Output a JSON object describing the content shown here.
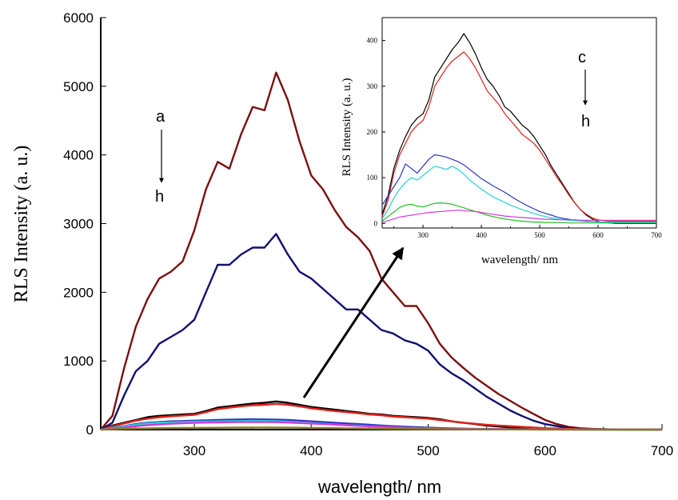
{
  "chart_data": [
    {
      "type": "line",
      "title": "",
      "xlabel": "wavelength/ nm",
      "ylabel": "RLS Intensity (a. u.)",
      "xlim": [
        220,
        700
      ],
      "ylim": [
        0,
        6000
      ],
      "xticks": [
        300,
        400,
        500,
        600,
        700
      ],
      "yticks": [
        0,
        1000,
        2000,
        3000,
        4000,
        5000,
        6000
      ],
      "grid": false,
      "annotations": [
        "a",
        "h"
      ],
      "x": [
        220,
        230,
        240,
        250,
        260,
        270,
        280,
        290,
        300,
        310,
        320,
        330,
        340,
        350,
        360,
        370,
        380,
        390,
        400,
        410,
        420,
        430,
        440,
        450,
        460,
        470,
        480,
        490,
        500,
        510,
        520,
        530,
        540,
        550,
        560,
        570,
        580,
        590,
        600,
        610,
        620,
        630,
        640,
        650,
        660,
        670,
        680,
        690,
        700
      ],
      "series": [
        {
          "color": "#7b1010",
          "values": [
            0,
            200,
            900,
            1500,
            1900,
            2200,
            2300,
            2450,
            2900,
            3500,
            3900,
            3800,
            4300,
            4700,
            4650,
            5200,
            4800,
            4200,
            3700,
            3500,
            3200,
            2950,
            2800,
            2600,
            2200,
            2000,
            1800,
            1800,
            1550,
            1250,
            1050,
            900,
            760,
            640,
            520,
            420,
            320,
            230,
            140,
            80,
            40,
            20,
            10,
            5,
            3,
            2,
            1,
            1,
            0
          ]
        },
        {
          "color": "#111170",
          "values": [
            0,
            100,
            500,
            850,
            1000,
            1250,
            1350,
            1450,
            1600,
            2000,
            2400,
            2400,
            2550,
            2650,
            2650,
            2850,
            2550,
            2300,
            2200,
            2050,
            1900,
            1750,
            1750,
            1600,
            1450,
            1400,
            1300,
            1250,
            1150,
            950,
            820,
            720,
            600,
            480,
            380,
            280,
            200,
            130,
            80,
            50,
            25,
            15,
            8,
            5,
            3,
            2,
            1,
            1,
            0
          ]
        },
        {
          "color": "#000000",
          "values": [
            0,
            60,
            100,
            140,
            180,
            200,
            210,
            220,
            230,
            270,
            320,
            340,
            360,
            380,
            390,
            410,
            390,
            360,
            330,
            310,
            290,
            270,
            250,
            230,
            220,
            200,
            190,
            180,
            170,
            150,
            120,
            100,
            80,
            60,
            45,
            30,
            20,
            12,
            8,
            5,
            3,
            2,
            1,
            1,
            0,
            0,
            0,
            0,
            0
          ]
        },
        {
          "color": "#e0201a",
          "values": [
            0,
            50,
            90,
            130,
            160,
            180,
            195,
            205,
            215,
            255,
            300,
            320,
            340,
            355,
            360,
            375,
            360,
            340,
            310,
            290,
            270,
            255,
            240,
            220,
            210,
            190,
            180,
            170,
            160,
            140,
            120,
            100,
            85,
            70,
            60,
            50,
            40,
            30,
            20,
            15,
            10,
            8,
            6,
            5,
            4,
            3,
            2,
            2,
            1
          ]
        },
        {
          "color": "#2b35c0",
          "values": [
            0,
            30,
            50,
            80,
            100,
            110,
            120,
            125,
            130,
            135,
            140,
            145,
            148,
            150,
            148,
            145,
            140,
            130,
            120,
            110,
            100,
            90,
            80,
            70,
            60,
            50,
            42,
            35,
            28,
            22,
            18,
            14,
            10,
            8,
            6,
            5,
            4,
            3,
            2,
            2,
            1,
            1,
            1,
            1,
            0,
            0,
            0,
            0,
            0
          ]
        },
        {
          "color": "#26d0d8",
          "values": [
            0,
            25,
            45,
            70,
            90,
            100,
            105,
            110,
            115,
            118,
            120,
            122,
            125,
            128,
            126,
            122,
            115,
            105,
            95,
            85,
            75,
            65,
            58,
            50,
            42,
            35,
            28,
            22,
            18,
            14,
            10,
            8,
            6,
            5,
            4,
            3,
            2,
            2,
            1,
            1,
            1,
            0,
            0,
            0,
            0,
            0,
            0,
            0,
            0
          ]
        },
        {
          "color": "#d23ad8",
          "values": [
            0,
            15,
            30,
            50,
            65,
            75,
            85,
            92,
            98,
            102,
            105,
            108,
            110,
            112,
            110,
            108,
            103,
            96,
            88,
            80,
            72,
            64,
            56,
            48,
            40,
            34,
            28,
            23,
            18,
            14,
            11,
            9,
            8,
            7,
            6,
            5,
            5,
            4,
            4,
            3,
            3,
            3,
            3,
            2,
            2,
            2,
            2,
            2,
            2
          ]
        },
        {
          "color": "#8a7a1a",
          "values": [
            0,
            5,
            10,
            15,
            18,
            20,
            22,
            24,
            25,
            26,
            27,
            28,
            29,
            30,
            30,
            29,
            28,
            27,
            25,
            23,
            21,
            19,
            17,
            15,
            13,
            11,
            9,
            8,
            7,
            6,
            5,
            4,
            3,
            3,
            2,
            2,
            2,
            1,
            1,
            1,
            1,
            1,
            1,
            1,
            0,
            0,
            0,
            0,
            0
          ]
        }
      ]
    },
    {
      "type": "line",
      "title": "",
      "xlabel": "wavelength/ nm",
      "ylabel": "RLS Intensity (a. u.)",
      "xlim": [
        230,
        700
      ],
      "ylim": [
        -10,
        450
      ],
      "xticks": [
        300,
        400,
        500,
        600,
        700
      ],
      "yticks": [
        0,
        100,
        200,
        300,
        400
      ],
      "grid": false,
      "annotations": [
        "c",
        "h"
      ],
      "x": [
        230,
        240,
        250,
        260,
        270,
        280,
        290,
        300,
        310,
        320,
        330,
        340,
        350,
        360,
        370,
        380,
        390,
        400,
        410,
        420,
        430,
        440,
        450,
        460,
        470,
        480,
        490,
        500,
        510,
        520,
        530,
        540,
        550,
        560,
        570,
        580,
        590,
        600,
        610,
        620,
        630,
        640,
        650,
        660,
        670,
        680,
        690,
        700
      ],
      "series": [
        {
          "color": "#000000",
          "values": [
            20,
            60,
            120,
            160,
            190,
            215,
            230,
            240,
            270,
            320,
            340,
            360,
            380,
            395,
            415,
            395,
            370,
            340,
            315,
            300,
            280,
            255,
            245,
            230,
            215,
            205,
            190,
            170,
            150,
            125,
            105,
            85,
            65,
            45,
            30,
            18,
            10,
            4,
            2,
            1,
            0,
            0,
            0,
            0,
            0,
            0,
            0,
            0
          ]
        },
        {
          "color": "#e0201a",
          "values": [
            15,
            50,
            110,
            150,
            175,
            200,
            215,
            225,
            255,
            300,
            320,
            340,
            355,
            365,
            375,
            360,
            340,
            315,
            290,
            275,
            260,
            240,
            225,
            210,
            195,
            185,
            175,
            160,
            140,
            120,
            100,
            82,
            62,
            45,
            30,
            20,
            12,
            8,
            6,
            5,
            5,
            5,
            5,
            5,
            5,
            5,
            5,
            5
          ]
        },
        {
          "color": "#2b35c0",
          "values": [
            40,
            60,
            80,
            100,
            130,
            120,
            110,
            125,
            140,
            150,
            148,
            145,
            140,
            135,
            128,
            118,
            108,
            98,
            90,
            82,
            75,
            68,
            60,
            52,
            45,
            38,
            32,
            26,
            22,
            18,
            14,
            11,
            9,
            7,
            6,
            5,
            4,
            3,
            3,
            2,
            2,
            2,
            2,
            2,
            2,
            2,
            2,
            2
          ]
        },
        {
          "color": "#26d0d8",
          "values": [
            10,
            30,
            55,
            75,
            90,
            100,
            95,
            105,
            115,
            125,
            122,
            118,
            125,
            118,
            108,
            95,
            85,
            75,
            66,
            58,
            52,
            46,
            40,
            35,
            30,
            26,
            22,
            18,
            15,
            12,
            10,
            8,
            7,
            6,
            5,
            4,
            4,
            3,
            3,
            3,
            3,
            3,
            3,
            3,
            3,
            3,
            3,
            3
          ]
        },
        {
          "color": "#22c022",
          "values": [
            5,
            15,
            25,
            35,
            40,
            42,
            38,
            36,
            40,
            44,
            45,
            44,
            42,
            38,
            34,
            30,
            26,
            22,
            18,
            15,
            12,
            10,
            8,
            6,
            5,
            4,
            3,
            3,
            2,
            2,
            2,
            2,
            1,
            1,
            1,
            1,
            1,
            1,
            1,
            1,
            1,
            1,
            1,
            1,
            1,
            1,
            1,
            1
          ]
        },
        {
          "color": "#d23ad8",
          "values": [
            2,
            6,
            10,
            14,
            16,
            18,
            20,
            22,
            24,
            25,
            26,
            27,
            28,
            29,
            28,
            27,
            26,
            24,
            22,
            20,
            18,
            16,
            15,
            14,
            13,
            12,
            11,
            10,
            9,
            9,
            8,
            8,
            8,
            8,
            7,
            7,
            7,
            7,
            7,
            7,
            7,
            7,
            7,
            7,
            7,
            7,
            7,
            7
          ]
        }
      ]
    }
  ]
}
